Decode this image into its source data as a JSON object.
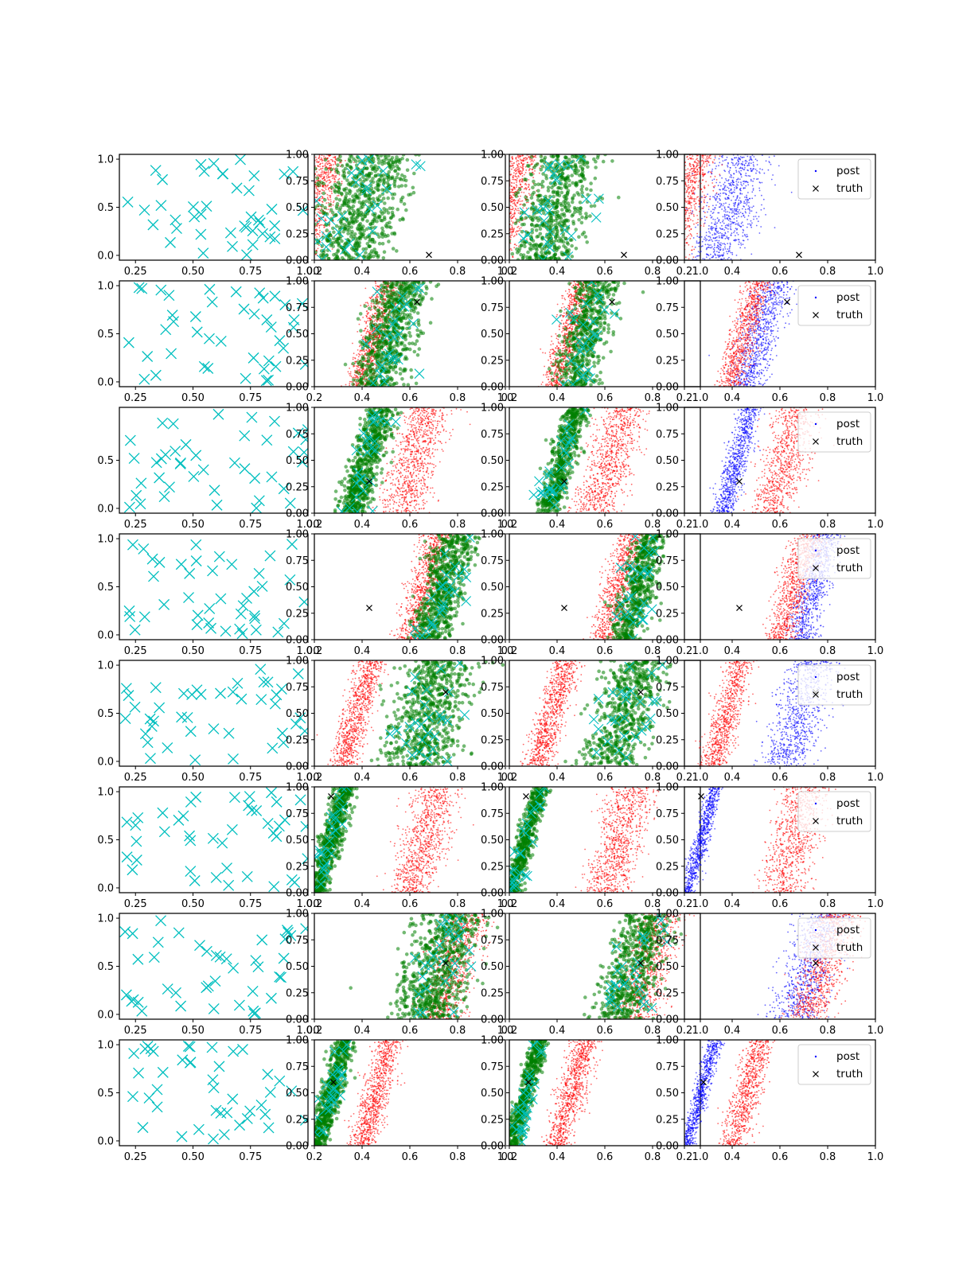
{
  "colors": {
    "prior": "#00bfbf",
    "model_a": "#008000",
    "model_b": "#ff0000",
    "post": "#0000ff",
    "truth": "#000000"
  },
  "chart_data": {
    "type": "scatter",
    "layout_desc": "grid of 8 rows x 4 columns of scatter plots",
    "xlim": [
      0.2,
      1.0
    ],
    "ylim": [
      0.0,
      1.0
    ],
    "x_ticks": [
      "0.2",
      "0.4",
      "0.6",
      "0.8",
      "1.0"
    ],
    "y_ticks": [
      "0.00",
      "0.25",
      "0.50",
      "0.75",
      "1.00"
    ],
    "prior_y_ticks": [
      "0.0",
      "0.5",
      "1.0"
    ],
    "legend": {
      "position": "upper right",
      "entries": [
        "post",
        "truth"
      ]
    },
    "rows": [
      {
        "truth": [
          0.68,
          0.05
        ],
        "prior_xlim": [
          0.18,
          1.0
        ],
        "prior_xticks": [
          "0.25",
          "0.50",
          "0.75",
          "1.00"
        ],
        "prior_yticks": [
          "0.0",
          "0.5",
          "1.0"
        ],
        "red_band": [
          0.2,
          0.34
        ],
        "blue_band": [
          0.39,
          0.61
        ],
        "red_spread": 0.08,
        "blue_spread": 0.16,
        "band_tilt": 0.12,
        "ylim_max": 1.0
      },
      {
        "truth": [
          0.63,
          0.8
        ],
        "prior_xlim": [
          0.18,
          1.0
        ],
        "prior_xticks": [
          "0.25",
          "0.50",
          "0.75"
        ],
        "prior_yticks": [
          "0.0",
          "0.5",
          "1.0"
        ],
        "red_band": [
          0.45,
          0.39
        ],
        "blue_band": [
          0.52,
          0.25
        ],
        "red_spread": 0.06,
        "blue_spread": 0.1,
        "band_tilt": 0.12,
        "ylim_max": 1.0
      },
      {
        "truth": [
          0.43,
          0.3
        ],
        "prior_xlim": [
          0.18,
          1.0
        ],
        "prior_xticks": [
          "0.25",
          "0.50",
          "0.75",
          "1.00"
        ],
        "prior_yticks": [
          "0.0",
          "0.5"
        ],
        "red_band": [
          0.62,
          0.68
        ],
        "blue_band": [
          0.42,
          0.3
        ],
        "red_spread": 0.1,
        "blue_spread": 0.06,
        "band_tilt": 0.12,
        "ylim_max": 1.0
      },
      {
        "truth": [
          0.43,
          0.3
        ],
        "prior_xlim": [
          0.18,
          1.0
        ],
        "prior_xticks": [
          "0.25",
          "0.50",
          "0.75",
          "1.00"
        ],
        "prior_yticks": [
          "0.0",
          "0.5",
          "1.0"
        ],
        "red_band": [
          0.66,
          0.4
        ],
        "blue_band": [
          0.74,
          0.45
        ],
        "red_spread": 0.07,
        "blue_spread": 0.08,
        "band_tilt": 0.12,
        "ylim_max": 1.0
      },
      {
        "truth": [
          0.75,
          0.7
        ],
        "prior_xlim": [
          0.18,
          1.0
        ],
        "prior_xticks": [
          "0.25",
          "0.50",
          "0.75",
          "1.00"
        ],
        "prior_yticks": [
          "0.0",
          "0.5",
          "1.0"
        ],
        "red_band": [
          0.38,
          0.51
        ],
        "blue_band": [
          0.68,
          0.51
        ],
        "red_spread": 0.06,
        "blue_spread": 0.14,
        "band_tilt": 0.12,
        "ylim_max": 1.0
      },
      {
        "truth": [
          0.27,
          0.91
        ],
        "prior_xlim": [
          0.18,
          1.0
        ],
        "prior_xticks": [
          "0.25",
          "0.50",
          "0.75",
          "1.00"
        ],
        "prior_yticks": [
          "0.0",
          "0.5",
          "1.0"
        ],
        "red_band": [
          0.66,
          0.4
        ],
        "blue_band": [
          0.27,
          0.5
        ],
        "red_spread": 0.1,
        "blue_spread": 0.04,
        "band_tilt": 0.12,
        "ylim_max": 1.0
      },
      {
        "truth": [
          0.75,
          0.53
        ],
        "prior_xlim": [
          0.18,
          1.0
        ],
        "prior_xticks": [
          "0.25",
          "0.50",
          "0.75",
          "1.00"
        ],
        "prior_yticks": [
          "0.0",
          "0.5",
          "1.0"
        ],
        "red_band": [
          0.78,
          0.4
        ],
        "blue_band": [
          0.72,
          0.36
        ],
        "red_spread": 0.1,
        "blue_spread": 0.13,
        "band_tilt": 0.12,
        "ylim_max": 1.0
      },
      {
        "truth": [
          0.28,
          0.6
        ],
        "prior_xlim": [
          0.18,
          1.0
        ],
        "prior_xticks": [
          "0.25",
          "0.50",
          "0.75"
        ],
        "prior_yticks": [
          "0.0",
          "0.5",
          "1.0"
        ],
        "red_band": [
          0.46,
          0.5
        ],
        "blue_band": [
          0.27,
          0.5
        ],
        "red_spread": 0.06,
        "blue_spread": 0.04,
        "band_tilt": 0.12,
        "ylim_max": 1.0
      }
    ]
  }
}
